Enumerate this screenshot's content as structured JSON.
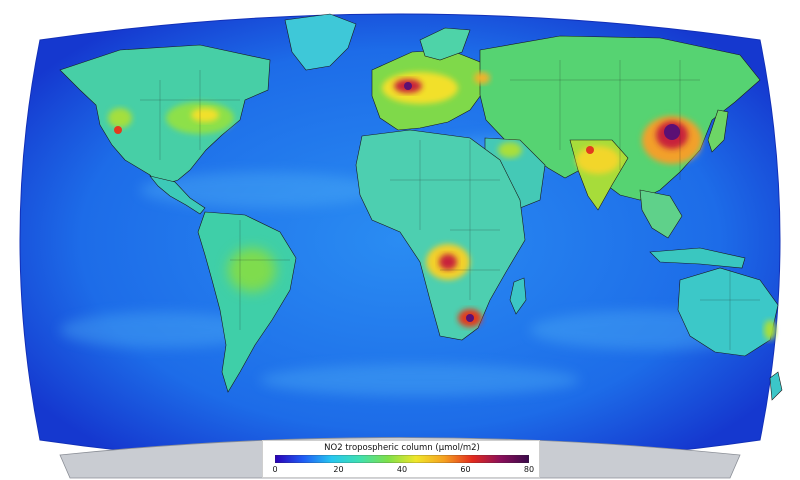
{
  "map": {
    "variable": "NO2",
    "colors": {
      "ocean_deep": "#1a2fd6",
      "ocean": "#1f7df0",
      "land_low": "#3fd1e6",
      "mid": "#55d66a",
      "high": "#f4e42a",
      "very_high": "#e02020",
      "extreme": "#5b1074",
      "antarctica": "#c9ccd2"
    }
  },
  "legend": {
    "title": "NO2 tropospheric column (μmol/m2)",
    "ticks": [
      "0",
      "20",
      "40",
      "60",
      "80"
    ],
    "tick_values": [
      0,
      20,
      40,
      60,
      80
    ],
    "range": [
      0,
      80
    ],
    "gradient": [
      "#2a00b6",
      "#1f5cf5",
      "#26c6f0",
      "#3fe0b0",
      "#7ee04a",
      "#f0e62a",
      "#f5a020",
      "#e22a1e",
      "#8a0f5a",
      "#3a0a4a"
    ]
  }
}
